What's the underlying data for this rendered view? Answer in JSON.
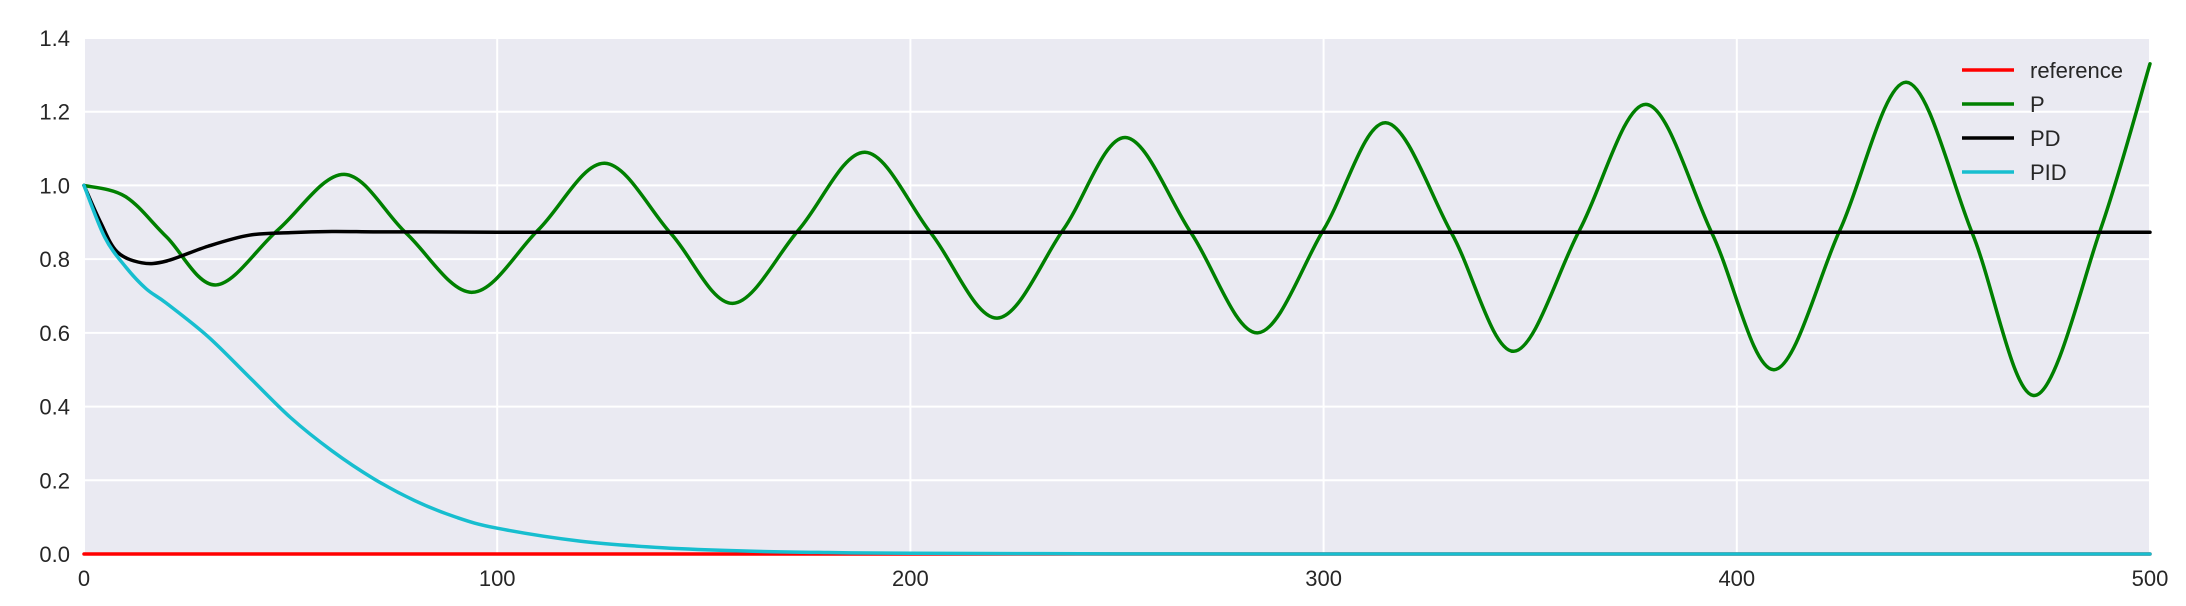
{
  "chart_data": {
    "type": "line",
    "title": "",
    "xlabel": "",
    "ylabel": "",
    "xlim": [
      0,
      500
    ],
    "ylim": [
      0.0,
      1.4
    ],
    "grid": true,
    "legend_position": "top-right",
    "x_ticks": [
      "0",
      "100",
      "200",
      "300",
      "400",
      "500"
    ],
    "y_ticks": [
      "0.0",
      "0.2",
      "0.4",
      "0.6",
      "0.8",
      "1.0",
      "1.2",
      "1.4"
    ],
    "x_tick_values": [
      0,
      100,
      200,
      300,
      400,
      500
    ],
    "y_tick_values": [
      0.0,
      0.2,
      0.4,
      0.6,
      0.8,
      1.0,
      1.2,
      1.4
    ],
    "background_color": "#EAEAF2",
    "series": [
      {
        "name": "reference",
        "color": "#ff0000",
        "x": [
          0,
          500
        ],
        "y": [
          0.0,
          0.0
        ]
      },
      {
        "name": "P",
        "color": "#008000",
        "x": [
          0,
          10,
          20,
          32,
          47,
          63,
          78,
          94,
          110,
          126,
          142,
          157,
          173,
          189,
          205,
          221,
          237,
          252,
          268,
          284,
          300,
          315,
          331,
          346,
          362,
          378,
          394,
          409,
          425,
          441,
          457,
          472,
          488,
          500
        ],
        "y": [
          1.0,
          0.97,
          0.86,
          0.73,
          0.88,
          1.03,
          0.87,
          0.71,
          0.88,
          1.06,
          0.87,
          0.68,
          0.88,
          1.09,
          0.87,
          0.64,
          0.88,
          1.13,
          0.87,
          0.6,
          0.88,
          1.17,
          0.87,
          0.55,
          0.88,
          1.22,
          0.87,
          0.5,
          0.88,
          1.28,
          0.87,
          0.43,
          0.88,
          1.33
        ]
      },
      {
        "name": "PD",
        "color": "#000000",
        "x": [
          0,
          4,
          8,
          14,
          20,
          30,
          40,
          50,
          60,
          70,
          80,
          100,
          150,
          200,
          300,
          400,
          500
        ],
        "y": [
          1.0,
          0.9,
          0.82,
          0.79,
          0.795,
          0.835,
          0.865,
          0.872,
          0.875,
          0.874,
          0.874,
          0.873,
          0.873,
          0.873,
          0.873,
          0.873,
          0.873
        ]
      },
      {
        "name": "PID",
        "color": "#17BECF",
        "x": [
          0,
          5,
          10,
          15,
          20,
          30,
          40,
          50,
          60,
          70,
          80,
          90,
          100,
          120,
          140,
          160,
          180,
          200,
          250,
          300,
          400,
          500
        ],
        "y": [
          1.0,
          0.86,
          0.78,
          0.72,
          0.68,
          0.59,
          0.48,
          0.37,
          0.28,
          0.205,
          0.145,
          0.1,
          0.07,
          0.035,
          0.017,
          0.008,
          0.004,
          0.002,
          0.0005,
          0.0,
          0.0,
          0.0
        ]
      }
    ]
  }
}
